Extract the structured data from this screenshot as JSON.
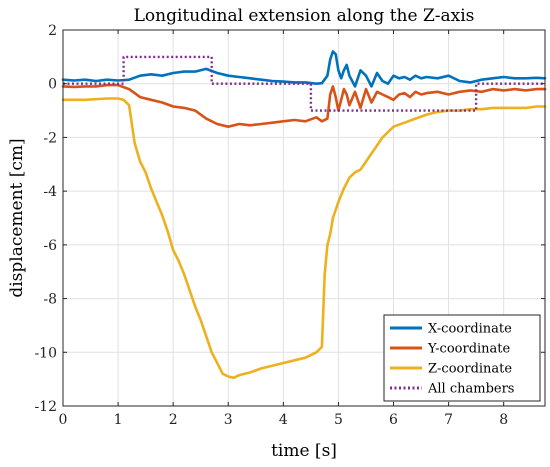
{
  "chart_data": {
    "type": "line",
    "title": "Longitudinal extension along the Z-axis",
    "xlabel": "time [s]",
    "ylabel": "displacement [cm]",
    "xlim": [
      0,
      8.75
    ],
    "ylim": [
      -12,
      2
    ],
    "xticks": [
      0,
      1,
      2,
      3,
      4,
      5,
      6,
      7,
      8
    ],
    "yticks": [
      2,
      0,
      -2,
      -4,
      -6,
      -8,
      -10,
      -12
    ],
    "xtick_labels": [
      "0",
      "1",
      "2",
      "3",
      "4",
      "5",
      "6",
      "7",
      "8"
    ],
    "ytick_labels": [
      "2",
      "0",
      "-2",
      "-4",
      "-6",
      "-8",
      "-10",
      "-12"
    ],
    "grid": true,
    "legend": "bottom-right",
    "series": [
      {
        "name": "X-coordinate",
        "color": "#0072BD",
        "style": "solid",
        "x": [
          0,
          0.2,
          0.4,
          0.6,
          0.8,
          1.0,
          1.2,
          1.4,
          1.6,
          1.8,
          2.0,
          2.2,
          2.4,
          2.6,
          2.8,
          3.0,
          3.2,
          3.4,
          3.6,
          3.8,
          4.0,
          4.2,
          4.4,
          4.6,
          4.7,
          4.8,
          4.85,
          4.9,
          4.95,
          5.0,
          5.05,
          5.1,
          5.15,
          5.2,
          5.3,
          5.4,
          5.5,
          5.6,
          5.7,
          5.8,
          5.9,
          6.0,
          6.1,
          6.2,
          6.3,
          6.4,
          6.5,
          6.6,
          6.8,
          7.0,
          7.2,
          7.4,
          7.6,
          7.8,
          8.0,
          8.2,
          8.4,
          8.6,
          8.75
        ],
        "y": [
          0.15,
          0.12,
          0.15,
          0.1,
          0.15,
          0.12,
          0.15,
          0.3,
          0.35,
          0.3,
          0.4,
          0.45,
          0.45,
          0.55,
          0.4,
          0.3,
          0.25,
          0.2,
          0.15,
          0.1,
          0.08,
          0.05,
          0.05,
          0.0,
          0.02,
          0.3,
          0.9,
          1.2,
          1.1,
          0.5,
          0.2,
          0.5,
          0.7,
          0.3,
          -0.1,
          0.5,
          0.3,
          -0.1,
          0.4,
          0.1,
          0.0,
          0.3,
          0.2,
          0.25,
          0.15,
          0.3,
          0.2,
          0.25,
          0.2,
          0.3,
          0.1,
          0.05,
          0.15,
          0.2,
          0.25,
          0.2,
          0.2,
          0.22,
          0.2
        ]
      },
      {
        "name": "Y-coordinate",
        "color": "#D95319",
        "style": "solid",
        "x": [
          0,
          0.2,
          0.4,
          0.6,
          0.8,
          1.0,
          1.2,
          1.4,
          1.6,
          1.8,
          2.0,
          2.2,
          2.4,
          2.6,
          2.8,
          3.0,
          3.2,
          3.4,
          3.6,
          3.8,
          4.0,
          4.2,
          4.4,
          4.6,
          4.7,
          4.8,
          4.85,
          4.9,
          4.95,
          5.0,
          5.05,
          5.1,
          5.15,
          5.2,
          5.3,
          5.4,
          5.5,
          5.6,
          5.7,
          5.8,
          5.9,
          6.0,
          6.1,
          6.2,
          6.3,
          6.4,
          6.5,
          6.6,
          6.8,
          7.0,
          7.2,
          7.4,
          7.6,
          7.8,
          8.0,
          8.2,
          8.4,
          8.6,
          8.75
        ],
        "y": [
          -0.1,
          -0.12,
          -0.1,
          -0.1,
          -0.05,
          -0.05,
          -0.2,
          -0.5,
          -0.6,
          -0.7,
          -0.85,
          -0.9,
          -1.0,
          -1.3,
          -1.5,
          -1.6,
          -1.5,
          -1.55,
          -1.5,
          -1.45,
          -1.4,
          -1.35,
          -1.4,
          -1.25,
          -1.4,
          -1.3,
          -0.4,
          -0.1,
          -0.5,
          -1.0,
          -0.6,
          -0.2,
          -0.4,
          -0.8,
          -0.3,
          -0.9,
          -0.2,
          -0.7,
          -0.3,
          -0.4,
          -0.5,
          -0.6,
          -0.4,
          -0.35,
          -0.5,
          -0.3,
          -0.4,
          -0.35,
          -0.3,
          -0.4,
          -0.3,
          -0.25,
          -0.3,
          -0.2,
          -0.25,
          -0.2,
          -0.25,
          -0.2,
          -0.2
        ]
      },
      {
        "name": "Z-coordinate",
        "color": "#EDB120",
        "style": "solid",
        "x": [
          0,
          0.4,
          0.8,
          1.0,
          1.1,
          1.2,
          1.3,
          1.4,
          1.5,
          1.6,
          1.7,
          1.8,
          1.9,
          2.0,
          2.1,
          2.2,
          2.3,
          2.4,
          2.5,
          2.6,
          2.7,
          2.8,
          2.9,
          3.0,
          3.1,
          3.2,
          3.4,
          3.6,
          3.8,
          4.0,
          4.2,
          4.4,
          4.6,
          4.7,
          4.75,
          4.8,
          4.85,
          4.9,
          5.0,
          5.1,
          5.2,
          5.3,
          5.4,
          5.5,
          5.6,
          5.7,
          5.8,
          5.9,
          6.0,
          6.2,
          6.4,
          6.6,
          6.8,
          7.0,
          7.2,
          7.4,
          7.6,
          7.8,
          8.0,
          8.2,
          8.4,
          8.6,
          8.75
        ],
        "y": [
          -0.6,
          -0.6,
          -0.55,
          -0.55,
          -0.6,
          -0.8,
          -2.2,
          -2.9,
          -3.3,
          -3.9,
          -4.4,
          -4.9,
          -5.5,
          -6.2,
          -6.6,
          -7.1,
          -7.7,
          -8.3,
          -8.8,
          -9.4,
          -10.0,
          -10.4,
          -10.8,
          -10.9,
          -10.95,
          -10.85,
          -10.75,
          -10.6,
          -10.5,
          -10.4,
          -10.3,
          -10.2,
          -10.0,
          -9.8,
          -7.1,
          -6.0,
          -5.6,
          -5.0,
          -4.4,
          -3.9,
          -3.5,
          -3.3,
          -3.2,
          -2.9,
          -2.6,
          -2.3,
          -2.0,
          -1.8,
          -1.6,
          -1.45,
          -1.3,
          -1.15,
          -1.05,
          -1.0,
          -1.0,
          -0.95,
          -0.95,
          -0.9,
          -0.9,
          -0.9,
          -0.9,
          -0.85,
          -0.85
        ]
      },
      {
        "name": "All chambers",
        "color": "#7E2F8E",
        "style": "dotted",
        "x": [
          0,
          1.1,
          1.1,
          2.7,
          2.7,
          4.5,
          4.5,
          7.5,
          7.5,
          8.75
        ],
        "y": [
          0,
          0,
          1,
          1,
          0,
          0,
          -1,
          -1,
          0,
          0
        ]
      }
    ]
  }
}
